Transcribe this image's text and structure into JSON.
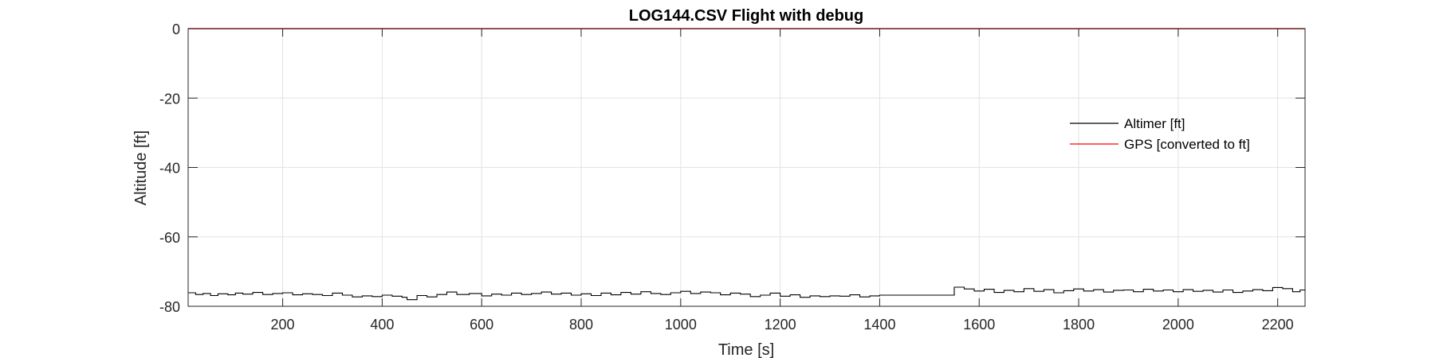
{
  "chart_data": {
    "type": "line",
    "title": "LOG144.CSV  Flight with debug",
    "xlabel": "Time [s]",
    "ylabel": "Altitude [ft]",
    "xlim": [
      10,
      2255
    ],
    "ylim": [
      -80,
      0
    ],
    "xticks": [
      200,
      400,
      600,
      800,
      1000,
      1200,
      1400,
      1600,
      1800,
      2000,
      2200
    ],
    "xtick_labels": [
      "200",
      "400",
      "600",
      "800",
      "1000",
      "1200",
      "1400",
      "1600",
      "1800",
      "2000",
      "2200"
    ],
    "yticks": [
      0,
      -20,
      -40,
      -60,
      -80
    ],
    "ytick_labels": [
      "0",
      "-20",
      "-40",
      "-60",
      "-80"
    ],
    "grid": true,
    "legend_position": "right, upper-middle",
    "series": [
      {
        "name": "Altimer [ft]",
        "color": "#000000",
        "step": true,
        "x": [
          10,
          25,
          40,
          55,
          70,
          90,
          105,
          120,
          140,
          160,
          180,
          200,
          220,
          240,
          260,
          280,
          300,
          320,
          340,
          360,
          380,
          400,
          420,
          440,
          450,
          470,
          490,
          510,
          530,
          550,
          575,
          600,
          620,
          640,
          660,
          680,
          700,
          720,
          740,
          760,
          780,
          800,
          820,
          840,
          860,
          880,
          900,
          920,
          940,
          960,
          980,
          1000,
          1020,
          1040,
          1060,
          1080,
          1100,
          1120,
          1140,
          1160,
          1180,
          1200,
          1220,
          1240,
          1260,
          1280,
          1300,
          1320,
          1340,
          1360,
          1380,
          1400,
          1440,
          1480,
          1520,
          1550,
          1570,
          1590,
          1610,
          1630,
          1650,
          1670,
          1690,
          1710,
          1730,
          1750,
          1770,
          1790,
          1810,
          1830,
          1850,
          1870,
          1890,
          1910,
          1930,
          1950,
          1970,
          1990,
          2010,
          2030,
          2050,
          2070,
          2090,
          2110,
          2130,
          2150,
          2170,
          2190,
          2210,
          2230,
          2245,
          2255
        ],
        "y": [
          -76.1,
          -76.6,
          -76.3,
          -76.9,
          -76.4,
          -76.7,
          -76.2,
          -76.5,
          -76.0,
          -76.6,
          -76.3,
          -76.1,
          -76.7,
          -76.4,
          -76.6,
          -76.9,
          -76.2,
          -76.8,
          -77.3,
          -77.0,
          -77.2,
          -76.8,
          -77.1,
          -77.4,
          -78.1,
          -76.9,
          -77.3,
          -76.6,
          -75.9,
          -76.6,
          -76.3,
          -77.0,
          -76.5,
          -76.8,
          -76.2,
          -76.6,
          -76.3,
          -75.9,
          -76.5,
          -76.2,
          -76.8,
          -76.4,
          -76.9,
          -76.2,
          -76.7,
          -76.0,
          -76.5,
          -75.8,
          -76.3,
          -76.6,
          -76.1,
          -75.7,
          -76.3,
          -75.9,
          -76.1,
          -76.7,
          -76.2,
          -76.5,
          -77.2,
          -76.8,
          -76.2,
          -77.1,
          -76.7,
          -77.4,
          -77.0,
          -77.2,
          -77.0,
          -77.1,
          -76.7,
          -77.3,
          -77.0,
          -76.8,
          -76.8,
          -76.8,
          -76.8,
          -74.5,
          -75.0,
          -75.6,
          -75.1,
          -76.0,
          -75.4,
          -75.8,
          -74.9,
          -75.7,
          -75.2,
          -76.1,
          -75.5,
          -75.0,
          -75.6,
          -75.2,
          -75.9,
          -75.4,
          -75.3,
          -75.8,
          -75.1,
          -75.6,
          -75.3,
          -75.8,
          -75.2,
          -75.7,
          -75.4,
          -75.9,
          -75.3,
          -76.0,
          -75.6,
          -75.2,
          -75.5,
          -74.6,
          -74.9,
          -75.8,
          -75.3,
          -75.8
        ]
      },
      {
        "name": "GPS [converted to ft]",
        "color": "#ff0000",
        "step": false,
        "x": [
          10,
          2255
        ],
        "y": [
          0,
          0
        ]
      }
    ]
  }
}
